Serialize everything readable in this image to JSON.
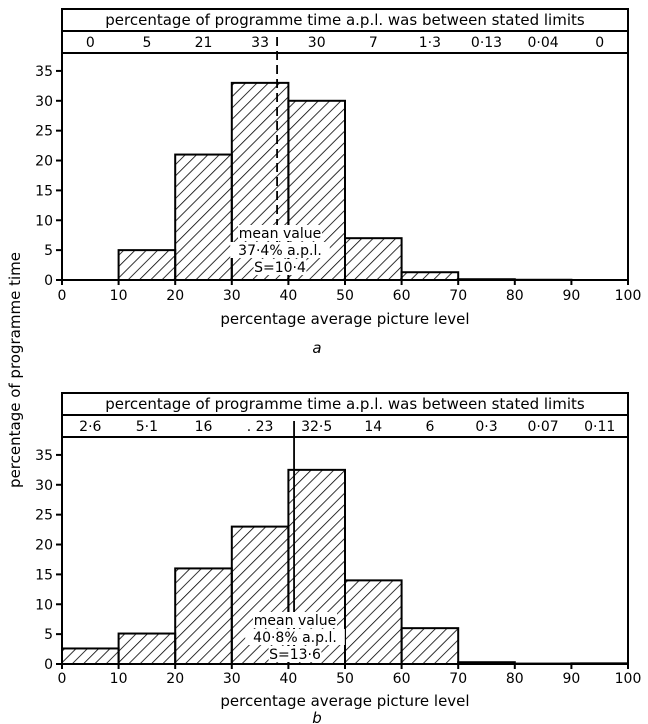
{
  "shared_ylabel": "percentage of programme time",
  "chart_data": [
    {
      "type": "bar",
      "panel_label": "a",
      "header_title": "percentage of programme time a.p.l. was between stated limits",
      "header_values": [
        "0",
        "5",
        "21",
        "33",
        "30",
        "7",
        "1·3",
        "0·13",
        "0·04",
        "0"
      ],
      "bin_edges": [
        0,
        10,
        20,
        30,
        40,
        50,
        60,
        70,
        80,
        90,
        100
      ],
      "values": [
        0,
        5,
        21,
        33,
        30,
        7,
        1.3,
        0.13,
        0.04,
        0
      ],
      "xlabel": "percentage average picture level",
      "xticks": [
        "0",
        "10",
        "20",
        "30",
        "40",
        "50",
        "60",
        "70",
        "80",
        "90",
        "100"
      ],
      "yticks": [
        "0",
        "5",
        "10",
        "15",
        "20",
        "25",
        "30",
        "35"
      ],
      "xlim": [
        0,
        100
      ],
      "ylim": [
        0,
        38
      ],
      "mean_line": 38,
      "mean_line_style": "dashed",
      "annotation": [
        "mean value",
        "37·4% a.p.l.",
        "S=10·4"
      ],
      "grid": false
    },
    {
      "type": "bar",
      "panel_label": "b",
      "header_title": "percentage of programme time a.p.l. was between stated limits",
      "header_values": [
        "2·6",
        "5·1",
        "16",
        ". 23",
        "32·5",
        "14",
        "6",
        "0·3",
        "0·07",
        "0·11"
      ],
      "bin_edges": [
        0,
        10,
        20,
        30,
        40,
        50,
        60,
        70,
        80,
        90,
        100
      ],
      "values": [
        2.6,
        5.1,
        16,
        23,
        32.5,
        14,
        6,
        0.3,
        0.07,
        0.11
      ],
      "xlabel": "percentage average picture level",
      "xticks": [
        "0",
        "10",
        "20",
        "30",
        "40",
        "50",
        "60",
        "70",
        "80",
        "90",
        "100"
      ],
      "yticks": [
        "0",
        "5",
        "10",
        "15",
        "20",
        "25",
        "30",
        "35"
      ],
      "xlim": [
        0,
        100
      ],
      "ylim": [
        0,
        38
      ],
      "mean_line": 41,
      "mean_line_style": "solid",
      "annotation": [
        "mean value",
        "40·8% a.p.l.",
        "S=13·6"
      ],
      "grid": false
    }
  ],
  "colors": {
    "ink": "#000000",
    "paper": "#ffffff"
  }
}
